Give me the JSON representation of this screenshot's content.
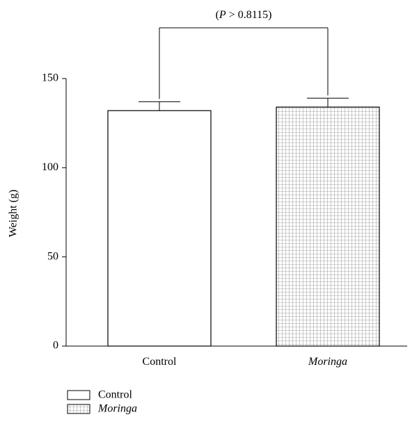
{
  "chart_data": {
    "type": "bar",
    "title": "",
    "xlabel": "",
    "ylabel": "Weight (g)",
    "ylim": [
      0,
      150
    ],
    "yticks": [
      0,
      50,
      100,
      150
    ],
    "categories": [
      "Control",
      "Moringa"
    ],
    "category_italic": [
      false,
      true
    ],
    "values": [
      132,
      134
    ],
    "errors": [
      5,
      5
    ],
    "fills": [
      "plain",
      "grid"
    ],
    "grid": false,
    "legend": {
      "placement": "bottom-left",
      "entries": [
        {
          "label": "Control",
          "italic": false,
          "fill": "plain"
        },
        {
          "label": "Moringa",
          "italic": true,
          "fill": "grid"
        }
      ]
    },
    "annotation": {
      "text": "(P > 0.8115)",
      "between": [
        "Control",
        "Moringa"
      ]
    },
    "colors": {
      "axis": "#000000",
      "bar_fill": "#ffffff",
      "grid_line": "#555555"
    }
  }
}
